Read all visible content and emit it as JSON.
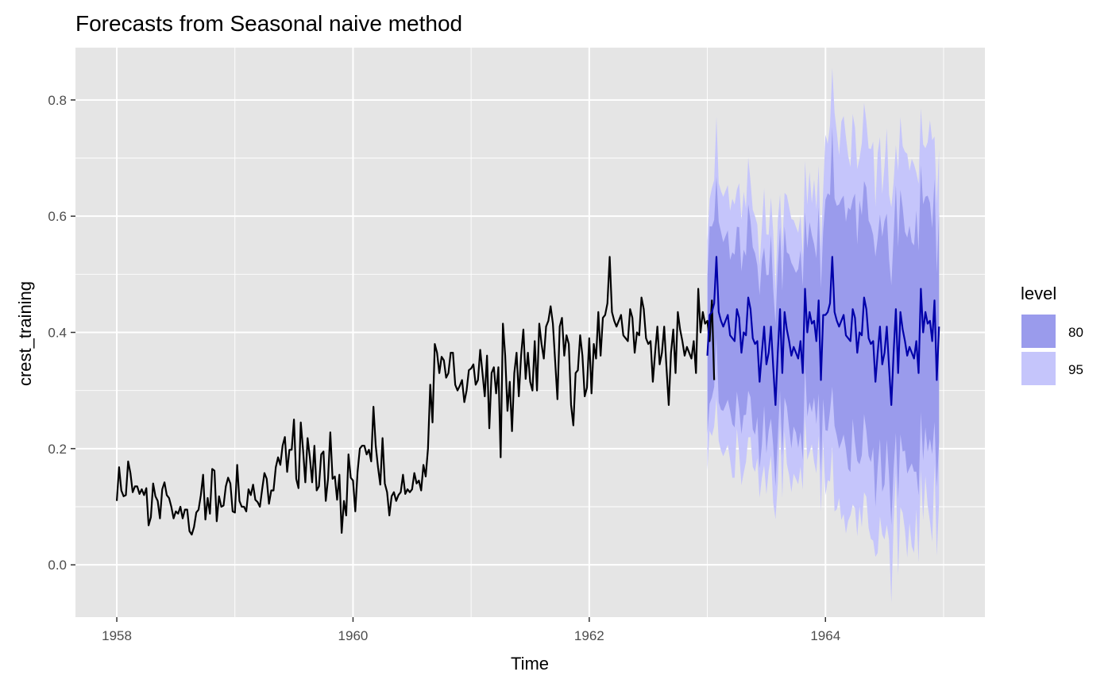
{
  "chart_data": {
    "type": "line",
    "title": "Forecasts from Seasonal naive method",
    "xlabel": "Time",
    "ylabel": "crest_training",
    "xlim": [
      1957.65,
      1965.35
    ],
    "ylim": [
      -0.09,
      0.89
    ],
    "x_ticks": [
      1958,
      1960,
      1962,
      1964
    ],
    "x_tick_labels": [
      "1958",
      "1960",
      "1962",
      "1964"
    ],
    "y_ticks": [
      0.0,
      0.2,
      0.4,
      0.6,
      0.8
    ],
    "y_tick_labels": [
      "0.0",
      "0.2",
      "0.4",
      "0.6",
      "0.8"
    ],
    "grid": true,
    "legend": {
      "title": "level",
      "position": "right",
      "entries": [
        {
          "label": "80",
          "color": "#9a9bec"
        },
        {
          "label": "95",
          "color": "#c5c5fb"
        }
      ]
    },
    "colors": {
      "panel_background": "#e5e5e5",
      "grid_major": "#ffffff",
      "history_line": "#000000",
      "forecast_line": "#0000aa",
      "band_80": "#9a9bec",
      "band_95": "#c5c5fb"
    },
    "frequency": 52,
    "forecast_start": 1963,
    "history": {
      "start": 1958,
      "values": [
        0.11,
        0.168,
        0.128,
        0.118,
        0.12,
        0.178,
        0.158,
        0.125,
        0.135,
        0.135,
        0.122,
        0.13,
        0.12,
        0.132,
        0.068,
        0.082,
        0.14,
        0.118,
        0.11,
        0.08,
        0.13,
        0.142,
        0.12,
        0.115,
        0.1,
        0.08,
        0.092,
        0.088,
        0.1,
        0.08,
        0.095,
        0.095,
        0.058,
        0.052,
        0.065,
        0.09,
        0.095,
        0.12,
        0.155,
        0.078,
        0.115,
        0.088,
        0.165,
        0.162,
        0.075,
        0.118,
        0.1,
        0.102,
        0.135,
        0.15,
        0.14,
        0.092,
        0.09,
        0.172,
        0.11,
        0.1,
        0.1,
        0.092,
        0.13,
        0.12,
        0.138,
        0.112,
        0.108,
        0.1,
        0.13,
        0.158,
        0.148,
        0.105,
        0.128,
        0.128,
        0.168,
        0.185,
        0.172,
        0.205,
        0.22,
        0.16,
        0.198,
        0.198,
        0.25,
        0.148,
        0.132,
        0.245,
        0.198,
        0.142,
        0.218,
        0.185,
        0.142,
        0.205,
        0.128,
        0.135,
        0.19,
        0.195,
        0.11,
        0.148,
        0.228,
        0.148,
        0.152,
        0.112,
        0.155,
        0.055,
        0.11,
        0.085,
        0.19,
        0.15,
        0.145,
        0.092,
        0.16,
        0.2,
        0.205,
        0.205,
        0.19,
        0.198,
        0.178,
        0.272,
        0.205,
        0.168,
        0.138,
        0.218,
        0.14,
        0.125,
        0.085,
        0.118,
        0.125,
        0.11,
        0.12,
        0.125,
        0.155,
        0.122,
        0.13,
        0.125,
        0.13,
        0.158,
        0.14,
        0.145,
        0.128,
        0.172,
        0.152,
        0.2,
        0.31,
        0.245,
        0.38,
        0.365,
        0.33,
        0.358,
        0.352,
        0.322,
        0.33,
        0.365,
        0.365,
        0.31,
        0.3,
        0.308,
        0.318,
        0.28,
        0.3,
        0.335,
        0.338,
        0.345,
        0.31,
        0.318,
        0.37,
        0.33,
        0.29,
        0.36,
        0.235,
        0.33,
        0.34,
        0.295,
        0.34,
        0.185,
        0.415,
        0.36,
        0.265,
        0.315,
        0.23,
        0.33,
        0.365,
        0.29,
        0.36,
        0.405,
        0.32,
        0.365,
        0.315,
        0.3,
        0.385,
        0.3,
        0.415,
        0.38,
        0.355,
        0.41,
        0.42,
        0.445,
        0.415,
        0.35,
        0.285,
        0.41,
        0.425,
        0.36,
        0.395,
        0.38,
        0.275,
        0.24,
        0.33,
        0.335,
        0.395,
        0.36,
        0.29,
        0.305,
        0.39,
        0.295,
        0.38,
        0.355,
        0.435,
        0.36,
        0.425,
        0.43,
        0.45,
        0.53,
        0.435,
        0.42,
        0.41,
        0.42,
        0.43,
        0.395,
        0.39,
        0.385,
        0.44,
        0.425,
        0.365,
        0.4,
        0.395,
        0.46,
        0.44,
        0.39,
        0.38,
        0.385,
        0.315,
        0.365,
        0.41,
        0.345,
        0.365,
        0.41,
        0.34,
        0.275,
        0.365,
        0.405,
        0.33,
        0.435,
        0.405,
        0.385,
        0.36,
        0.375,
        0.365,
        0.355,
        0.385,
        0.33,
        0.475,
        0.4,
        0.435,
        0.415,
        0.42,
        0.385,
        0.455,
        0.318
      ]
    },
    "forecast_point": {
      "start": 1963,
      "values": [
        0.36,
        0.43,
        0.435,
        0.45,
        0.53,
        0.435,
        0.42,
        0.41,
        0.42,
        0.43,
        0.395,
        0.39,
        0.385,
        0.44,
        0.425,
        0.365,
        0.4,
        0.395,
        0.46,
        0.44,
        0.39,
        0.38,
        0.385,
        0.315,
        0.365,
        0.41,
        0.345,
        0.365,
        0.41,
        0.34,
        0.275,
        0.365,
        0.44,
        0.33,
        0.435,
        0.405,
        0.385,
        0.36,
        0.375,
        0.365,
        0.355,
        0.385,
        0.33,
        0.475,
        0.4,
        0.435,
        0.415,
        0.42,
        0.385,
        0.455,
        0.318,
        0.43,
        0.43,
        0.435,
        0.45,
        0.53,
        0.435,
        0.42,
        0.41,
        0.42,
        0.43,
        0.395,
        0.39,
        0.385,
        0.44,
        0.425,
        0.365,
        0.4,
        0.395,
        0.46,
        0.44,
        0.39,
        0.38,
        0.385,
        0.315,
        0.365,
        0.41,
        0.345,
        0.365,
        0.41,
        0.34,
        0.275,
        0.365,
        0.44,
        0.33,
        0.435,
        0.405,
        0.385,
        0.36,
        0.375,
        0.365,
        0.355,
        0.385,
        0.33,
        0.475,
        0.4,
        0.435,
        0.415,
        0.42,
        0.385,
        0.455,
        0.318,
        0.41
      ]
    },
    "interval_half_width": {
      "80": {
        "year1": 0.145,
        "year2": 0.205
      },
      "95": {
        "year1": 0.22,
        "year2": 0.315
      }
    }
  }
}
